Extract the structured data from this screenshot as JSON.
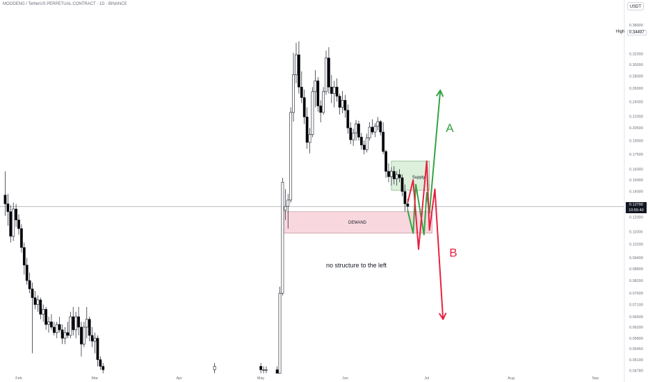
{
  "header": {
    "symbol_title": "MOODENG / TetherUS PERPETUAL CONTRACT · 1D · BINANCE",
    "unit_button": "USDT"
  },
  "high_marker": {
    "label": "High",
    "value": "0.34497"
  },
  "current_price": {
    "value": "0.12790",
    "countdown": "10:55:40"
  },
  "colors": {
    "up_candle": "#ffffff",
    "down_candle": "#000000",
    "supply_zone": "#d9efd9",
    "demand_zone": "#f8d4db",
    "scenario_a": "#35a343",
    "scenario_b": "#e8213f",
    "grid": "#f0f3fa"
  },
  "chart_data": {
    "type": "candlestick",
    "title": "",
    "y_scale": "log",
    "y_ticks": [
      "0.38000",
      "0.34497",
      "0.32000",
      "0.30000",
      "0.28000",
      "0.26000",
      "0.24000",
      "0.22000",
      "0.20500",
      "0.19000",
      "0.17500",
      "0.16000",
      "0.15000",
      "0.14000",
      "0.12790",
      "0.12000",
      "0.11000",
      "0.10200",
      "0.09400",
      "0.08800",
      "0.08200",
      "0.07600",
      "0.07100",
      "0.06600",
      "0.06200",
      "0.05800",
      "0.05450",
      "0.05100",
      "0.04780"
    ],
    "x_ticks": [
      "Feb",
      "Mar",
      "Apr",
      "May",
      "Jun",
      "Jul",
      "Aug",
      "Sep"
    ],
    "ylim": [
      0.0465,
      0.41
    ],
    "candles": [
      {
        "d": "Jan 27",
        "o": 0.137,
        "h": 0.158,
        "l": 0.121,
        "c": 0.13
      },
      {
        "d": "Jan 28",
        "o": 0.13,
        "h": 0.138,
        "l": 0.114,
        "c": 0.124
      },
      {
        "d": "Jan 29",
        "o": 0.124,
        "h": 0.129,
        "l": 0.103,
        "c": 0.107
      },
      {
        "d": "Jan 30",
        "o": 0.107,
        "h": 0.131,
        "l": 0.104,
        "c": 0.126
      },
      {
        "d": "Jan 31",
        "o": 0.126,
        "h": 0.13,
        "l": 0.113,
        "c": 0.118
      },
      {
        "d": "Feb 1",
        "o": 0.118,
        "h": 0.122,
        "l": 0.108,
        "c": 0.112
      },
      {
        "d": "Feb 2",
        "o": 0.112,
        "h": 0.115,
        "l": 0.097,
        "c": 0.1
      },
      {
        "d": "Feb 3",
        "o": 0.1,
        "h": 0.103,
        "l": 0.085,
        "c": 0.09
      },
      {
        "d": "Feb 4",
        "o": 0.09,
        "h": 0.094,
        "l": 0.08,
        "c": 0.082
      },
      {
        "d": "Feb 5",
        "o": 0.082,
        "h": 0.086,
        "l": 0.076,
        "c": 0.078
      },
      {
        "d": "Feb 6",
        "o": 0.078,
        "h": 0.081,
        "l": 0.053,
        "c": 0.074
      },
      {
        "d": "Feb 7",
        "o": 0.074,
        "h": 0.077,
        "l": 0.069,
        "c": 0.071
      },
      {
        "d": "Feb 8",
        "o": 0.071,
        "h": 0.075,
        "l": 0.068,
        "c": 0.073
      },
      {
        "d": "Feb 9",
        "o": 0.073,
        "h": 0.074,
        "l": 0.065,
        "c": 0.067
      },
      {
        "d": "Feb 10",
        "o": 0.067,
        "h": 0.071,
        "l": 0.064,
        "c": 0.069
      },
      {
        "d": "Feb 11",
        "o": 0.069,
        "h": 0.07,
        "l": 0.061,
        "c": 0.063
      },
      {
        "d": "Feb 12",
        "o": 0.063,
        "h": 0.066,
        "l": 0.06,
        "c": 0.064
      },
      {
        "d": "Feb 13",
        "o": 0.064,
        "h": 0.067,
        "l": 0.061,
        "c": 0.062
      },
      {
        "d": "Feb 14",
        "o": 0.062,
        "h": 0.064,
        "l": 0.059,
        "c": 0.06
      },
      {
        "d": "Feb 15",
        "o": 0.06,
        "h": 0.064,
        "l": 0.058,
        "c": 0.063
      },
      {
        "d": "Feb 16",
        "o": 0.063,
        "h": 0.066,
        "l": 0.06,
        "c": 0.061
      },
      {
        "d": "Feb 17",
        "o": 0.061,
        "h": 0.063,
        "l": 0.056,
        "c": 0.058
      },
      {
        "d": "Feb 18",
        "o": 0.058,
        "h": 0.062,
        "l": 0.056,
        "c": 0.06
      },
      {
        "d": "Feb 19",
        "o": 0.06,
        "h": 0.064,
        "l": 0.058,
        "c": 0.059
      },
      {
        "d": "Feb 20",
        "o": 0.059,
        "h": 0.068,
        "l": 0.058,
        "c": 0.066
      },
      {
        "d": "Feb 21",
        "o": 0.066,
        "h": 0.07,
        "l": 0.059,
        "c": 0.061
      },
      {
        "d": "Feb 22",
        "o": 0.061,
        "h": 0.068,
        "l": 0.058,
        "c": 0.066
      },
      {
        "d": "Feb 23",
        "o": 0.066,
        "h": 0.07,
        "l": 0.059,
        "c": 0.062
      },
      {
        "d": "Feb 24",
        "o": 0.062,
        "h": 0.064,
        "l": 0.052,
        "c": 0.056
      },
      {
        "d": "Feb 25",
        "o": 0.056,
        "h": 0.064,
        "l": 0.055,
        "c": 0.062
      },
      {
        "d": "Feb 26",
        "o": 0.062,
        "h": 0.07,
        "l": 0.058,
        "c": 0.065
      },
      {
        "d": "Feb 27",
        "o": 0.065,
        "h": 0.066,
        "l": 0.057,
        "c": 0.059
      },
      {
        "d": "Feb 28",
        "o": 0.059,
        "h": 0.062,
        "l": 0.055,
        "c": 0.057
      },
      {
        "d": "Mar 1",
        "o": 0.057,
        "h": 0.06,
        "l": 0.053,
        "c": 0.058
      },
      {
        "d": "Mar 2",
        "o": 0.058,
        "h": 0.059,
        "l": 0.049,
        "c": 0.051
      },
      {
        "d": "Mar 3",
        "o": 0.051,
        "h": 0.052,
        "l": 0.048,
        "c": 0.049
      },
      {
        "d": "Mar 4",
        "o": 0.049,
        "h": 0.05,
        "l": 0.047,
        "c": 0.048
      },
      {
        "d": "Apr 14",
        "o": 0.048,
        "h": 0.05,
        "l": 0.047,
        "c": 0.049
      },
      {
        "d": "May 1",
        "o": 0.049,
        "h": 0.05,
        "l": 0.047,
        "c": 0.048
      },
      {
        "d": "May 2",
        "o": 0.048,
        "h": 0.049,
        "l": 0.047,
        "c": 0.048
      },
      {
        "d": "May 3",
        "o": 0.048,
        "h": 0.049,
        "l": 0.047,
        "c": 0.048
      },
      {
        "d": "May 7",
        "o": 0.048,
        "h": 0.049,
        "l": 0.047,
        "c": 0.047
      },
      {
        "d": "May 8",
        "o": 0.047,
        "h": 0.079,
        "l": 0.047,
        "c": 0.076
      },
      {
        "d": "May 9",
        "o": 0.076,
        "h": 0.152,
        "l": 0.075,
        "c": 0.148
      },
      {
        "d": "May 10",
        "o": 0.125,
        "h": 0.142,
        "l": 0.118,
        "c": 0.128
      },
      {
        "d": "May 11",
        "o": 0.128,
        "h": 0.138,
        "l": 0.112,
        "c": 0.133
      },
      {
        "d": "May 12",
        "o": 0.133,
        "h": 0.232,
        "l": 0.131,
        "c": 0.225
      },
      {
        "d": "May 13",
        "o": 0.225,
        "h": 0.322,
        "l": 0.213,
        "c": 0.282
      },
      {
        "d": "May 14",
        "o": 0.282,
        "h": 0.342,
        "l": 0.268,
        "c": 0.318
      },
      {
        "d": "May 15",
        "o": 0.318,
        "h": 0.345,
        "l": 0.252,
        "c": 0.262
      },
      {
        "d": "May 16",
        "o": 0.262,
        "h": 0.288,
        "l": 0.238,
        "c": 0.246
      },
      {
        "d": "May 17",
        "o": 0.246,
        "h": 0.258,
        "l": 0.21,
        "c": 0.219
      },
      {
        "d": "May 18",
        "o": 0.219,
        "h": 0.232,
        "l": 0.181,
        "c": 0.188
      },
      {
        "d": "May 19",
        "o": 0.188,
        "h": 0.205,
        "l": 0.176,
        "c": 0.197
      },
      {
        "d": "May 20",
        "o": 0.197,
        "h": 0.262,
        "l": 0.194,
        "c": 0.255
      },
      {
        "d": "May 21",
        "o": 0.255,
        "h": 0.29,
        "l": 0.232,
        "c": 0.272
      },
      {
        "d": "May 22",
        "o": 0.272,
        "h": 0.278,
        "l": 0.226,
        "c": 0.234
      },
      {
        "d": "May 23",
        "o": 0.234,
        "h": 0.242,
        "l": 0.212,
        "c": 0.225
      },
      {
        "d": "May 24",
        "o": 0.225,
        "h": 0.262,
        "l": 0.222,
        "c": 0.255
      },
      {
        "d": "May 25",
        "o": 0.255,
        "h": 0.326,
        "l": 0.25,
        "c": 0.312
      },
      {
        "d": "May 26",
        "o": 0.312,
        "h": 0.333,
        "l": 0.252,
        "c": 0.262
      },
      {
        "d": "May 27",
        "o": 0.262,
        "h": 0.282,
        "l": 0.238,
        "c": 0.252
      },
      {
        "d": "May 28",
        "o": 0.252,
        "h": 0.272,
        "l": 0.232,
        "c": 0.262
      },
      {
        "d": "May 29",
        "o": 0.262,
        "h": 0.276,
        "l": 0.24,
        "c": 0.248
      },
      {
        "d": "May 30",
        "o": 0.248,
        "h": 0.252,
        "l": 0.222,
        "c": 0.232
      },
      {
        "d": "May 31",
        "o": 0.232,
        "h": 0.256,
        "l": 0.224,
        "c": 0.242
      },
      {
        "d": "Jun 1",
        "o": 0.242,
        "h": 0.25,
        "l": 0.218,
        "c": 0.228
      },
      {
        "d": "Jun 2",
        "o": 0.228,
        "h": 0.236,
        "l": 0.198,
        "c": 0.205
      },
      {
        "d": "Jun 3",
        "o": 0.205,
        "h": 0.212,
        "l": 0.186,
        "c": 0.191
      },
      {
        "d": "Jun 4",
        "o": 0.191,
        "h": 0.204,
        "l": 0.184,
        "c": 0.199
      },
      {
        "d": "Jun 5",
        "o": 0.199,
        "h": 0.215,
        "l": 0.19,
        "c": 0.21
      },
      {
        "d": "Jun 6",
        "o": 0.21,
        "h": 0.214,
        "l": 0.19,
        "c": 0.194
      },
      {
        "d": "Jun 7",
        "o": 0.194,
        "h": 0.199,
        "l": 0.18,
        "c": 0.185
      },
      {
        "d": "Jun 8",
        "o": 0.185,
        "h": 0.19,
        "l": 0.175,
        "c": 0.18
      },
      {
        "d": "Jun 9",
        "o": 0.18,
        "h": 0.198,
        "l": 0.177,
        "c": 0.193
      },
      {
        "d": "Jun 10",
        "o": 0.193,
        "h": 0.212,
        "l": 0.19,
        "c": 0.206
      },
      {
        "d": "Jun 11",
        "o": 0.206,
        "h": 0.216,
        "l": 0.197,
        "c": 0.2
      },
      {
        "d": "Jun 12",
        "o": 0.2,
        "h": 0.211,
        "l": 0.194,
        "c": 0.207
      },
      {
        "d": "Jun 13",
        "o": 0.207,
        "h": 0.219,
        "l": 0.202,
        "c": 0.213
      },
      {
        "d": "Jun 14",
        "o": 0.213,
        "h": 0.215,
        "l": 0.196,
        "c": 0.2
      },
      {
        "d": "Jun 15",
        "o": 0.2,
        "h": 0.212,
        "l": 0.175,
        "c": 0.178
      },
      {
        "d": "Jun 16",
        "o": 0.178,
        "h": 0.18,
        "l": 0.152,
        "c": 0.158
      },
      {
        "d": "Jun 17",
        "o": 0.158,
        "h": 0.166,
        "l": 0.148,
        "c": 0.153
      },
      {
        "d": "Jun 18",
        "o": 0.153,
        "h": 0.162,
        "l": 0.145,
        "c": 0.158
      },
      {
        "d": "Jun 19",
        "o": 0.158,
        "h": 0.163,
        "l": 0.146,
        "c": 0.151
      },
      {
        "d": "Jun 20",
        "o": 0.151,
        "h": 0.158,
        "l": 0.145,
        "c": 0.155
      },
      {
        "d": "Jun 21",
        "o": 0.155,
        "h": 0.16,
        "l": 0.148,
        "c": 0.152
      },
      {
        "d": "Jun 22",
        "o": 0.152,
        "h": 0.155,
        "l": 0.136,
        "c": 0.14
      },
      {
        "d": "Jun 23",
        "o": 0.14,
        "h": 0.146,
        "l": 0.124,
        "c": 0.13
      },
      {
        "d": "Jun 24",
        "o": 0.13,
        "h": 0.134,
        "l": 0.125,
        "c": 0.128
      }
    ],
    "zones": [
      {
        "label": "Supply",
        "from": "Jun 18",
        "to": "Jul 2",
        "low": 0.141,
        "high": 0.168
      },
      {
        "label": "DEMAND",
        "from": "May 9",
        "to": "Jul 3",
        "low": 0.109,
        "high": 0.124
      }
    ],
    "scenarios": [
      {
        "label": "A",
        "points": [
          [
            "Jun 24",
            0.125
          ],
          [
            "Jun 26",
            0.109
          ],
          [
            "Jun 27",
            0.146
          ],
          [
            "Jun 30",
            0.108
          ],
          [
            "Jul 1",
            0.139
          ],
          [
            "Jul 2",
            0.123
          ],
          [
            "Jul 6",
            0.257
          ]
        ]
      },
      {
        "label": "B",
        "points": [
          [
            "Jun 24",
            0.131
          ],
          [
            "Jun 26",
            0.15
          ],
          [
            "Jun 28",
            0.099
          ],
          [
            "Jul 1",
            0.168
          ],
          [
            "Jul 2",
            0.111
          ],
          [
            "Jul 4",
            0.142
          ],
          [
            "Jul 7",
            0.065
          ]
        ]
      }
    ],
    "annotations": [
      "no structure to the left"
    ]
  }
}
